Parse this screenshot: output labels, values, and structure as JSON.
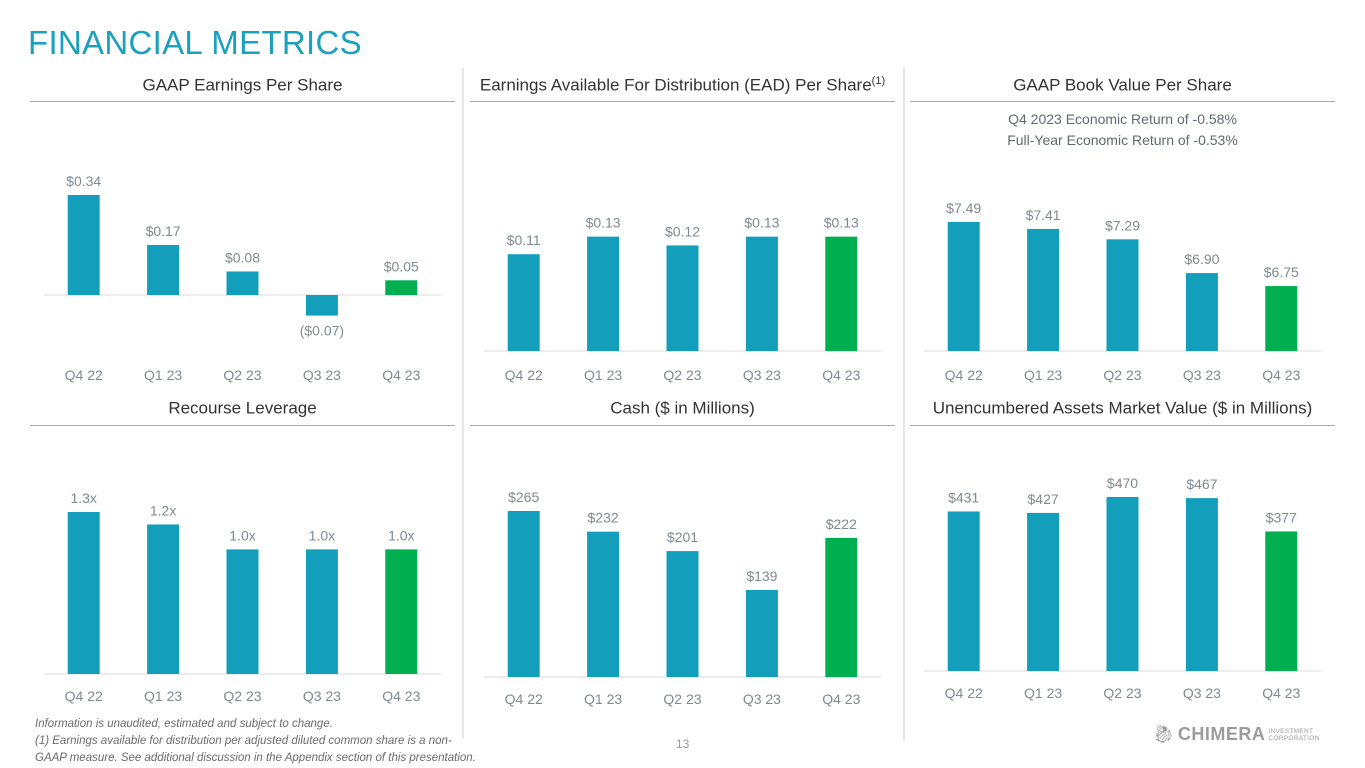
{
  "page": {
    "title": "FINANCIAL METRICS",
    "page_number": "13",
    "footnotes": [
      "Information is unaudited, estimated and subject to change.",
      "(1) Earnings available for distribution per adjusted diluted common share is a non-",
      "GAAP measure. See additional discussion in the Appendix section of this presentation."
    ],
    "logo": {
      "name": "CHIMERA",
      "sub_line1": "INVESTMENT",
      "sub_line2": "CORPORATION",
      "icon": "chimera-creature-icon"
    }
  },
  "colors": {
    "accent": "#1ba1bd",
    "bar": "#139fbb",
    "highlight": "#00b050",
    "label": "#7f8a91",
    "axis": "#d9d9d9"
  },
  "chart_data": [
    {
      "type": "bar",
      "title": "GAAP Earnings Per Share",
      "title_sup": "",
      "subtitle": [],
      "categories": [
        "Q4 22",
        "Q1 23",
        "Q2 23",
        "Q3 23",
        "Q4 23"
      ],
      "values": [
        0.34,
        0.17,
        0.08,
        -0.07,
        0.05
      ],
      "labels": [
        "$0.34",
        "$0.17",
        "$0.08",
        "($0.07)",
        "$0.05"
      ],
      "highlight_index": 4,
      "xlabel": "",
      "ylabel": "",
      "ylim": [
        -0.1,
        0.34
      ]
    },
    {
      "type": "bar",
      "title": "Earnings Available For Distribution (EAD) Per Share",
      "title_sup": "(1)",
      "subtitle": [],
      "categories": [
        "Q4 22",
        "Q1 23",
        "Q2 23",
        "Q3 23",
        "Q4 23"
      ],
      "values": [
        0.11,
        0.13,
        0.12,
        0.13,
        0.13
      ],
      "labels": [
        "$0.11",
        "$0.13",
        "$0.12",
        "$0.13",
        "$0.13"
      ],
      "highlight_index": 4,
      "xlabel": "",
      "ylabel": "",
      "ylim": [
        0,
        0.133
      ]
    },
    {
      "type": "bar",
      "title": "GAAP Book Value Per Share",
      "title_sup": "",
      "subtitle": [
        "Q4 2023 Economic Return of -0.58%",
        "Full-Year Economic Return of -0.53%"
      ],
      "categories": [
        "Q4 22",
        "Q1 23",
        "Q2 23",
        "Q3 23",
        "Q4 23"
      ],
      "values": [
        7.49,
        7.41,
        7.29,
        6.9,
        6.75
      ],
      "labels": [
        "$7.49",
        "$7.41",
        "$7.29",
        "$6.90",
        "$6.75"
      ],
      "highlight_index": 4,
      "xlabel": "",
      "ylabel": "",
      "ylim": [
        6.0,
        7.49
      ]
    },
    {
      "type": "bar",
      "title": "Recourse Leverage",
      "title_sup": "",
      "subtitle": [],
      "categories": [
        "Q4 22",
        "Q1 23",
        "Q2 23",
        "Q3 23",
        "Q4 23"
      ],
      "values": [
        1.3,
        1.2,
        1.0,
        1.0,
        1.0
      ],
      "labels": [
        "1.3x",
        "1.2x",
        "1.0x",
        "1.0x",
        "1.0x"
      ],
      "highlight_index": 4,
      "xlabel": "",
      "ylabel": "",
      "ylim": [
        0,
        1.3
      ]
    },
    {
      "type": "bar",
      "title": "Cash ($ in Millions)",
      "title_sup": "",
      "subtitle": [],
      "categories": [
        "Q4 22",
        "Q1 23",
        "Q2 23",
        "Q3 23",
        "Q4 23"
      ],
      "values": [
        265,
        232,
        201,
        139,
        222
      ],
      "labels": [
        "$265",
        "$232",
        "$201",
        "$139",
        "$222"
      ],
      "highlight_index": 4,
      "xlabel": "",
      "ylabel": "",
      "ylim": [
        0,
        265
      ]
    },
    {
      "type": "bar",
      "title": "Unencumbered Assets Market Value ($ in Millions)",
      "title_sup": "",
      "subtitle": [],
      "categories": [
        "Q4 22",
        "Q1 23",
        "Q2 23",
        "Q3 23",
        "Q4 23"
      ],
      "values": [
        431,
        427,
        470,
        467,
        377
      ],
      "labels": [
        "$431",
        "$427",
        "$470",
        "$467",
        "$377"
      ],
      "highlight_index": 4,
      "xlabel": "",
      "ylabel": "",
      "ylim": [
        0,
        470
      ]
    }
  ]
}
